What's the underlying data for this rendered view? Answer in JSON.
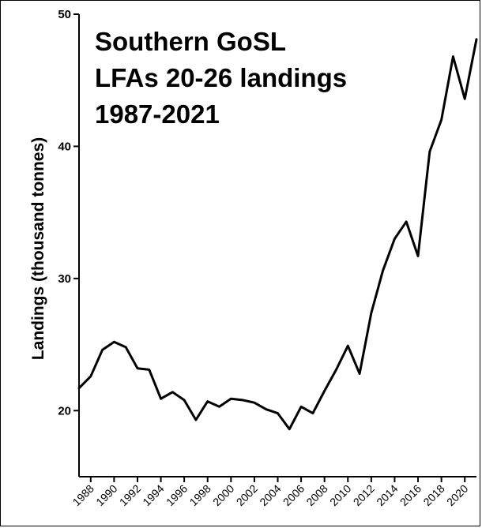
{
  "chart_data": {
    "type": "line",
    "title_lines": [
      "Southern GoSL",
      "LFAs 20-26 landings",
      "1987-2021"
    ],
    "xlabel": "",
    "ylabel": "Landings (thousand tonnes)",
    "xlim": [
      1987,
      2021
    ],
    "ylim": [
      15,
      50
    ],
    "yticks": [
      20,
      30,
      40,
      50
    ],
    "xticks": [
      1988,
      1990,
      1992,
      1994,
      1996,
      1998,
      2000,
      2002,
      2004,
      2006,
      2008,
      2010,
      2012,
      2014,
      2016,
      2018,
      2020
    ],
    "grid": false,
    "x": [
      1987,
      1988,
      1989,
      1990,
      1991,
      1992,
      1993,
      1994,
      1995,
      1996,
      1997,
      1998,
      1999,
      2000,
      2001,
      2002,
      2003,
      2004,
      2005,
      2006,
      2007,
      2008,
      2009,
      2010,
      2011,
      2012,
      2013,
      2014,
      2015,
      2016,
      2017,
      2018,
      2019,
      2020,
      2021
    ],
    "values": [
      21.7,
      22.6,
      24.6,
      25.2,
      24.8,
      23.2,
      23.1,
      20.9,
      21.4,
      20.8,
      19.3,
      20.7,
      20.3,
      20.9,
      20.8,
      20.6,
      20.1,
      19.8,
      18.6,
      20.3,
      19.8,
      21.5,
      23.1,
      24.9,
      22.8,
      27.4,
      30.6,
      33.0,
      34.3,
      31.7,
      39.6,
      42.0,
      46.8,
      43.6,
      48.1
    ],
    "line_color": "#000000"
  }
}
